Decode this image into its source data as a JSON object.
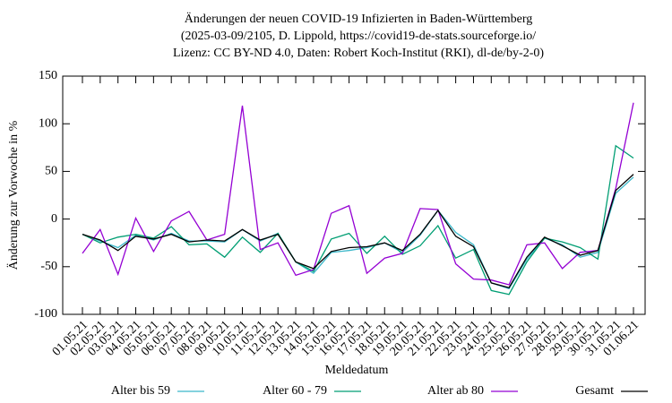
{
  "chart_data": {
    "type": "line",
    "title": [
      "Änderungen der neuen COVID-19 Infizierten in Baden-Württemberg",
      "(2025-03-09/2105, D. Lippold, https://covid19-de-stats.sourceforge.io/",
      "Lizenz: CC BY-ND 4.0, Daten: Robert Koch-Institut (RKI), dl-de/by-2-0)"
    ],
    "x_label": "Meldedatum",
    "y_label": "Änderung zur Vorwoche in %",
    "x": [
      "01.05.21",
      "02.05.21",
      "03.05.21",
      "04.05.21",
      "05.05.21",
      "06.05.21",
      "07.05.21",
      "08.05.21",
      "09.05.21",
      "10.05.21",
      "11.05.21",
      "12.05.21",
      "13.05.21",
      "14.05.21",
      "15.05.21",
      "16.05.21",
      "17.05.21",
      "18.05.21",
      "19.05.21",
      "20.05.21",
      "21.05.21",
      "22.05.21",
      "23.05.21",
      "24.05.21",
      "25.05.21",
      "26.05.21",
      "27.05.21",
      "28.05.21",
      "29.05.21",
      "30.05.21",
      "31.05.21",
      "01.06.21"
    ],
    "ylim": [
      -100,
      150
    ],
    "yticks": [
      -100,
      -50,
      0,
      50,
      100,
      150
    ],
    "series": [
      {
        "name": "Alter bis 59",
        "color": "#3ab7c9",
        "values": [
          -16,
          -23,
          -30,
          -17,
          -22,
          -15,
          -23,
          -23,
          -24,
          -11,
          -23,
          -15,
          -45,
          -57,
          -35,
          -33,
          -30,
          -25,
          -35,
          -17,
          9,
          -14,
          -27,
          -67,
          -73,
          -42,
          -20,
          -27,
          -40,
          -35,
          27,
          44
        ]
      },
      {
        "name": "Alter 60 - 79",
        "color": "#009e73",
        "values": [
          -16,
          -25,
          -19,
          -16,
          -20,
          -8,
          -27,
          -26,
          -40,
          -19,
          -35,
          -15,
          -45,
          -55,
          -21,
          -15,
          -36,
          -18,
          -37,
          -28,
          -7,
          -41,
          -32,
          -75,
          -79,
          -45,
          -20,
          -24,
          -30,
          -42,
          77,
          64
        ]
      },
      {
        "name": "Alter ab 80",
        "color": "#9400d3",
        "values": [
          -36,
          -11,
          -58,
          1,
          -34,
          -2,
          8,
          -22,
          -16,
          119,
          -32,
          -25,
          -59,
          -53,
          6,
          14,
          -57,
          -41,
          -36,
          11,
          10,
          -47,
          -63,
          -64,
          -69,
          -27,
          -25,
          -52,
          -35,
          -33,
          32,
          122
        ]
      },
      {
        "name": "Gesamt",
        "color": "#000000",
        "values": [
          -16,
          -22,
          -33,
          -18,
          -21,
          -16,
          -24,
          -22,
          -23,
          -11,
          -22,
          -16,
          -45,
          -52,
          -34,
          -30,
          -29,
          -25,
          -33,
          -16,
          9,
          -18,
          -29,
          -67,
          -72,
          -40,
          -19,
          -28,
          -38,
          -33,
          30,
          47
        ]
      }
    ]
  }
}
